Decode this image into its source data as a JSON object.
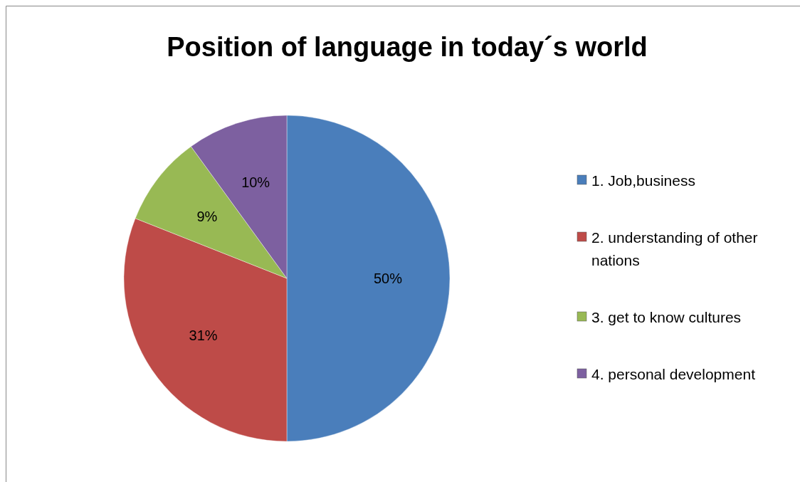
{
  "chart_data": {
    "type": "pie",
    "title": "Position of language in today´s world",
    "categories": [
      "1. Job,business",
      "2. understanding of other nations",
      "3. get to know cultures",
      "4. personal development"
    ],
    "values": [
      50,
      31,
      9,
      10
    ],
    "colors": [
      "#4a7ebb",
      "#be4b48",
      "#98b954",
      "#7d60a0"
    ],
    "value_labels": [
      "50%",
      "31%",
      "9%",
      "10%"
    ],
    "legend": "right"
  }
}
